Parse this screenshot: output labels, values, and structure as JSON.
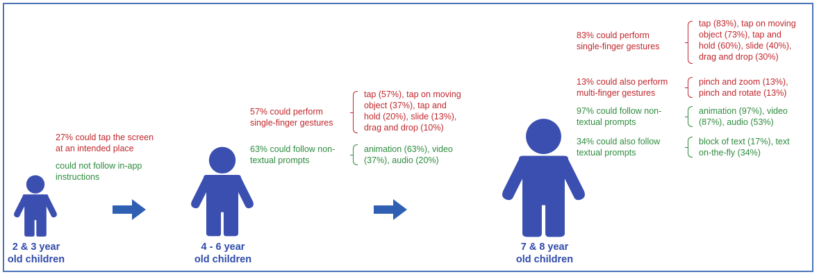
{
  "stages": [
    {
      "label_line1": "2 & 3 year",
      "label_line2": "old children",
      "blocks": [
        {
          "lines": [
            "27% could tap the screen",
            "at an intended place"
          ],
          "color": "red"
        },
        {
          "lines": [
            "could not follow in-app",
            "instructions"
          ],
          "color": "green"
        }
      ]
    },
    {
      "label_line1": "4 - 6 year",
      "label_line2": "old children",
      "blocks": [
        {
          "lines": [
            "57% could perform",
            "single-finger gestures"
          ],
          "color": "red",
          "detail": [
            "tap (57%), tap on moving",
            "object (37%), tap and",
            "hold (20%), slide (13%),",
            "drag and drop (10%)"
          ]
        },
        {
          "lines": [
            "63% could follow non-",
            "textual prompts"
          ],
          "color": "green",
          "detail": [
            "animation (63%), video",
            "(37%), audio (20%)"
          ]
        }
      ]
    },
    {
      "label_line1": "7 & 8 year",
      "label_line2": "old children",
      "blocks": [
        {
          "lines": [
            "83% could perform",
            "single-finger gestures"
          ],
          "color": "red",
          "detail": [
            "tap (83%), tap on moving",
            "object (73%), tap and",
            "hold (60%), slide (40%),",
            "drag and drop (30%)"
          ]
        },
        {
          "lines": [
            "13% could also perform",
            "multi-finger gestures"
          ],
          "color": "red",
          "detail": [
            "pinch and zoom (13%),",
            "pinch and rotate (13%)"
          ]
        },
        {
          "lines": [
            "97% could follow non-",
            "textual prompts"
          ],
          "color": "green",
          "detail": [
            "animation (97%), video",
            "(87%), audio (53%)"
          ]
        },
        {
          "lines": [
            "34% could also follow",
            "textual prompts"
          ],
          "color": "green",
          "detail": [
            "block of text (17%), text",
            "on-the-fly (34%)"
          ]
        }
      ]
    }
  ],
  "colors": {
    "figure": "#3b4fb0",
    "arrow": "#2f5fb3",
    "red": "#c1272d",
    "green": "#2e8b3e",
    "label": "#2f4aa8",
    "border": "#4a74b8"
  }
}
